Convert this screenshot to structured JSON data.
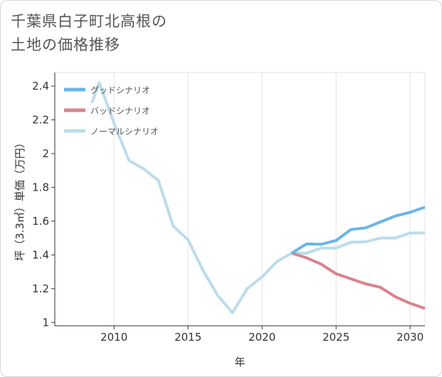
{
  "title": {
    "line1": "千葉県白子町北高根の",
    "line2": "土地の価格推移"
  },
  "chart_data": {
    "type": "line",
    "title": "千葉県白子町北高根の土地の価格推移",
    "xlabel": "年",
    "ylabel": "坪（3.3㎡）単価（万円）",
    "xlim": [
      2006,
      2031
    ],
    "ylim": [
      0.98,
      2.48
    ],
    "x_ticks": [
      2010,
      2015,
      2020,
      2025,
      2030
    ],
    "x_tick_labels": [
      "2010",
      "2015",
      "2020",
      "2025",
      "2030"
    ],
    "y_ticks": [
      1,
      1.2,
      1.4,
      1.6,
      1.8,
      2,
      2.2,
      2.4
    ],
    "y_tick_labels": [
      "1",
      "1.2",
      "1.4",
      "1.6",
      "1.8",
      "2",
      "2.2",
      "2.4"
    ],
    "grid": "vertical",
    "legend_position": "top-left",
    "series": [
      {
        "name": "グッドシナリオ",
        "color": "#6bb5e8",
        "x": [
          2022,
          2023,
          2024,
          2025,
          2026,
          2027,
          2028,
          2029,
          2030,
          2031
        ],
        "values": [
          1.41,
          1.465,
          1.463,
          1.485,
          1.55,
          1.56,
          1.595,
          1.63,
          1.652,
          1.683
        ]
      },
      {
        "name": "バッドシナリオ",
        "color": "#d8838b",
        "x": [
          2022,
          2023,
          2024,
          2025,
          2026,
          2027,
          2028,
          2029,
          2030,
          2031
        ],
        "values": [
          1.41,
          1.383,
          1.345,
          1.288,
          1.258,
          1.228,
          1.208,
          1.152,
          1.113,
          1.083
        ]
      },
      {
        "name": "ノーマルシナリオ",
        "color": "#bcdcec",
        "x": [
          2008.5,
          2009,
          2010,
          2011,
          2012,
          2013,
          2014,
          2015,
          2016,
          2017,
          2018,
          2019,
          2020,
          2021,
          2022,
          2023,
          2024,
          2025,
          2026,
          2027,
          2028,
          2029,
          2030,
          2031
        ],
        "values": [
          2.3,
          2.42,
          2.18,
          1.96,
          1.91,
          1.84,
          1.57,
          1.49,
          1.31,
          1.16,
          1.058,
          1.2,
          1.27,
          1.36,
          1.41,
          1.41,
          1.44,
          1.44,
          1.475,
          1.477,
          1.5,
          1.5,
          1.53,
          1.53
        ]
      }
    ]
  }
}
